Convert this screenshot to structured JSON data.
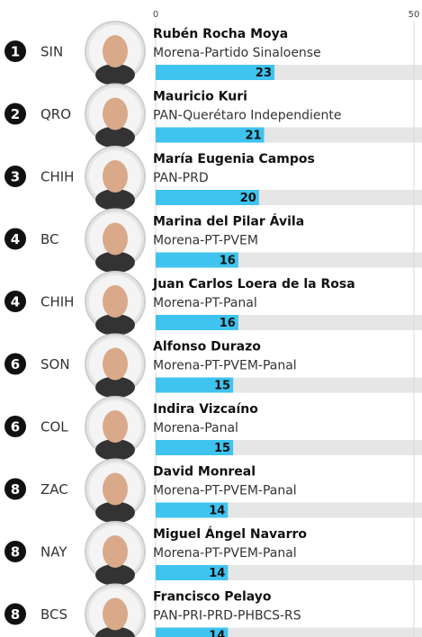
{
  "chart_data": {
    "type": "bar",
    "ranks": [
      1,
      2,
      3,
      4,
      4,
      6,
      6,
      8,
      8,
      8
    ],
    "states": [
      "SIN",
      "QRO",
      "CHIH",
      "BC",
      "CHIH",
      "SON",
      "COL",
      "ZAC",
      "NAY",
      "BCS"
    ],
    "categories": [
      "Rubén Rocha Moya",
      "Mauricio Kuri",
      "María Eugenia Campos",
      "Marina del Pilar Ávila",
      "Juan Carlos Loera de la Rosa",
      "Alfonso Durazo",
      "Indira Vizcaíno",
      "David Monreal",
      "Miguel Ángel Navarro",
      "Francisco Pelayo"
    ],
    "parties": [
      "Morena-Partido Sinaloense",
      "PAN-Querétaro Independiente",
      "PAN-PRD",
      "Morena-PT-PVEM",
      "Morena-PT-Panal",
      "Morena-PT-PVEM-Panal",
      "Morena-Panal",
      "Morena-PT-PVEM-Panal",
      "Morena-PT-PVEM-Panal",
      "PAN-PRI-PRD-PHBCS-RS"
    ],
    "values": [
      23,
      21,
      20,
      16,
      16,
      15,
      15,
      14,
      14,
      14
    ],
    "color": "#3fc3ef",
    "xlim": [
      0,
      50
    ],
    "xticks": [
      0,
      50
    ],
    "grid": true
  }
}
